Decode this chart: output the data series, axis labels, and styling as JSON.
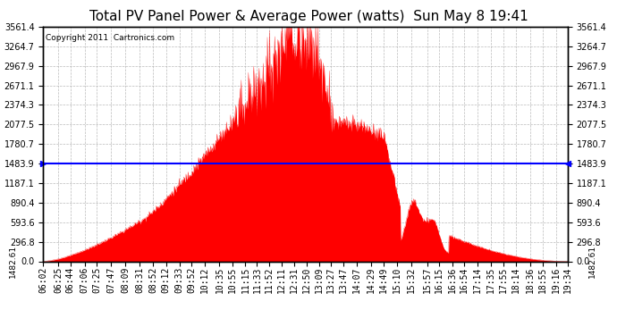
{
  "title": "Total PV Panel Power & Average Power (watts)  Sun May 8 19:41",
  "copyright": "Copyright 2011  Cartronics.com",
  "average_power": 1482.61,
  "y_max": 3561.4,
  "y_ticks": [
    0.0,
    296.8,
    593.6,
    890.4,
    1187.1,
    1483.9,
    1780.7,
    2077.5,
    2374.3,
    2671.1,
    2967.9,
    3264.7,
    3561.4
  ],
  "avg_label": "1482.61",
  "fill_color": "#FF0000",
  "line_color": "#FF0000",
  "avg_line_color": "#0000FF",
  "background_color": "#FFFFFF",
  "grid_color": "#AAAAAA",
  "title_fontsize": 11,
  "tick_fontsize": 7,
  "x_labels": [
    "06:02",
    "06:25",
    "06:44",
    "07:06",
    "07:25",
    "07:47",
    "08:09",
    "08:31",
    "08:52",
    "09:12",
    "09:33",
    "09:52",
    "10:12",
    "10:35",
    "10:55",
    "11:15",
    "11:33",
    "11:52",
    "12:11",
    "12:31",
    "12:50",
    "13:09",
    "13:27",
    "13:47",
    "14:07",
    "14:29",
    "14:49",
    "15:10",
    "15:32",
    "15:57",
    "16:15",
    "16:36",
    "16:54",
    "17:14",
    "17:35",
    "17:55",
    "18:14",
    "18:36",
    "18:55",
    "19:16",
    "19:34"
  ]
}
